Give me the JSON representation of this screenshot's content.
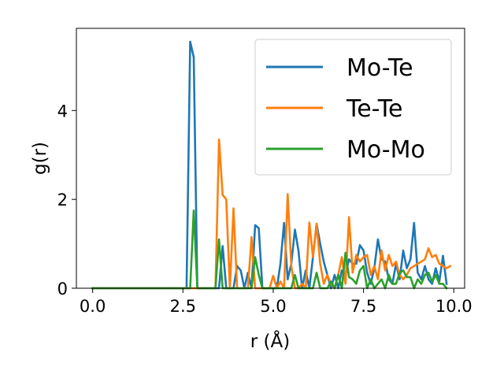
{
  "chart_data": {
    "type": "line",
    "xlabel": "r (Å)",
    "ylabel": "g(r)",
    "xlim": [
      -0.45,
      10.3
    ],
    "ylim": [
      0,
      5.85
    ],
    "xticks": [
      0.0,
      2.5,
      5.0,
      7.5,
      10.0
    ],
    "xtick_labels": [
      "0.0",
      "2.5",
      "5.0",
      "7.5",
      "10.0"
    ],
    "yticks": [
      0,
      2,
      4
    ],
    "ytick_labels": [
      "0",
      "2",
      "4"
    ],
    "grid": false,
    "legend_position": "top-right",
    "series": [
      {
        "name": "Mo-Te",
        "color": "#1f77b4",
        "points": [
          [
            0,
            0
          ],
          [
            2.6,
            0
          ],
          [
            2.7,
            5.55
          ],
          [
            2.8,
            5.2
          ],
          [
            2.9,
            0
          ],
          [
            3.5,
            0
          ],
          [
            3.6,
            0.95
          ],
          [
            3.7,
            0
          ],
          [
            3.9,
            0
          ],
          [
            4.0,
            0.5
          ],
          [
            4.1,
            0.4
          ],
          [
            4.2,
            0
          ],
          [
            4.3,
            0.35
          ],
          [
            4.4,
            0
          ],
          [
            4.5,
            1.42
          ],
          [
            4.6,
            1.35
          ],
          [
            4.7,
            0
          ],
          [
            5.1,
            0
          ],
          [
            5.2,
            0.55
          ],
          [
            5.3,
            1.47
          ],
          [
            5.4,
            0.2
          ],
          [
            5.5,
            0.55
          ],
          [
            5.6,
            1.32
          ],
          [
            5.7,
            0.85
          ],
          [
            5.8,
            0
          ],
          [
            5.9,
            0.4
          ],
          [
            6.0,
            0
          ],
          [
            6.1,
            0.7
          ],
          [
            6.2,
            1.45
          ],
          [
            6.3,
            1.0
          ],
          [
            6.4,
            0.6
          ],
          [
            6.5,
            0.3
          ],
          [
            6.6,
            0
          ],
          [
            6.7,
            0.3
          ],
          [
            6.8,
            0
          ],
          [
            6.9,
            0.4
          ],
          [
            7.0,
            0.3
          ],
          [
            7.1,
            0.65
          ],
          [
            7.2,
            0.55
          ],
          [
            7.3,
            0.55
          ],
          [
            7.4,
            0.97
          ],
          [
            7.5,
            0.85
          ],
          [
            7.6,
            0.35
          ],
          [
            7.7,
            0.1
          ],
          [
            7.8,
            0.45
          ],
          [
            7.9,
            1.1
          ],
          [
            8.0,
            0.65
          ],
          [
            8.1,
            0.6
          ],
          [
            8.2,
            0.2
          ],
          [
            8.3,
            0.1
          ],
          [
            8.4,
            0.55
          ],
          [
            8.5,
            0.2
          ],
          [
            8.6,
            0.85
          ],
          [
            8.7,
            0.45
          ],
          [
            8.8,
            0.65
          ],
          [
            8.9,
            1.47
          ],
          [
            9.0,
            0.35
          ],
          [
            9.1,
            0.2
          ],
          [
            9.2,
            0.5
          ],
          [
            9.3,
            0.2
          ],
          [
            9.4,
            0.1
          ],
          [
            9.5,
            0.45
          ],
          [
            9.6,
            0.15
          ],
          [
            9.7,
            0.73
          ],
          [
            9.8,
            0.1
          ]
        ]
      },
      {
        "name": "Te-Te",
        "color": "#ff7f0e",
        "points": [
          [
            0,
            0
          ],
          [
            3.4,
            0
          ],
          [
            3.5,
            3.35
          ],
          [
            3.6,
            2.1
          ],
          [
            3.7,
            2.0
          ],
          [
            3.8,
            0
          ],
          [
            3.9,
            1.8
          ],
          [
            4.0,
            0
          ],
          [
            4.3,
            0
          ],
          [
            4.4,
            1.15
          ],
          [
            4.5,
            0
          ],
          [
            4.9,
            0
          ],
          [
            5.0,
            0.28
          ],
          [
            5.1,
            0
          ],
          [
            5.2,
            0.15
          ],
          [
            5.3,
            0
          ],
          [
            5.4,
            2.12
          ],
          [
            5.5,
            0.5
          ],
          [
            5.6,
            0
          ],
          [
            5.7,
            0
          ],
          [
            5.8,
            0.1
          ],
          [
            5.9,
            0
          ],
          [
            6.0,
            1.48
          ],
          [
            6.1,
            0.7
          ],
          [
            6.2,
            1.45
          ],
          [
            6.3,
            0.55
          ],
          [
            6.4,
            0.1
          ],
          [
            6.5,
            0.3
          ],
          [
            6.6,
            0.1
          ],
          [
            6.7,
            0
          ],
          [
            6.8,
            0.3
          ],
          [
            6.9,
            0.7
          ],
          [
            7.0,
            0.1
          ],
          [
            7.1,
            1.6
          ],
          [
            7.2,
            0.35
          ],
          [
            7.3,
            0.75
          ],
          [
            7.4,
            0.6
          ],
          [
            7.5,
            0.7
          ],
          [
            7.6,
            0.75
          ],
          [
            7.7,
            0.3
          ],
          [
            7.8,
            0.5
          ],
          [
            7.9,
            0.2
          ],
          [
            8.0,
            0.85
          ],
          [
            8.1,
            0.4
          ],
          [
            8.2,
            0.75
          ],
          [
            8.3,
            0.5
          ],
          [
            8.4,
            0.6
          ],
          [
            8.5,
            0.3
          ],
          [
            8.6,
            0.2
          ],
          [
            8.7,
            0.3
          ],
          [
            8.8,
            0.45
          ],
          [
            8.9,
            0.5
          ],
          [
            9.0,
            0.55
          ],
          [
            9.1,
            0.6
          ],
          [
            9.2,
            0.65
          ],
          [
            9.3,
            0.9
          ],
          [
            9.4,
            0.7
          ],
          [
            9.5,
            0.75
          ],
          [
            9.6,
            0.55
          ],
          [
            9.7,
            0.5
          ],
          [
            9.8,
            0.45
          ],
          [
            9.9,
            0.5
          ]
        ]
      },
      {
        "name": "Mo-Mo",
        "color": "#2ca02c",
        "points": [
          [
            0,
            0
          ],
          [
            2.7,
            0
          ],
          [
            2.8,
            1.75
          ],
          [
            2.9,
            0
          ],
          [
            3.4,
            0
          ],
          [
            3.5,
            1.1
          ],
          [
            3.6,
            0
          ],
          [
            4.4,
            0
          ],
          [
            4.5,
            0.7
          ],
          [
            4.6,
            0.3
          ],
          [
            4.7,
            0
          ],
          [
            5.5,
            0
          ],
          [
            5.6,
            0.3
          ],
          [
            5.7,
            0
          ],
          [
            6.1,
            0
          ],
          [
            6.2,
            0.35
          ],
          [
            6.3,
            0
          ],
          [
            6.5,
            0
          ],
          [
            6.6,
            0.15
          ],
          [
            6.7,
            0
          ],
          [
            6.8,
            0.3
          ],
          [
            6.9,
            0
          ],
          [
            7.0,
            0.8
          ],
          [
            7.1,
            0.25
          ],
          [
            7.2,
            0.2
          ],
          [
            7.3,
            0.1
          ],
          [
            7.4,
            0.4
          ],
          [
            7.5,
            0.5
          ],
          [
            7.6,
            0
          ],
          [
            7.7,
            0.2
          ],
          [
            7.8,
            0
          ],
          [
            7.9,
            0.1
          ],
          [
            8.0,
            0.2
          ],
          [
            8.1,
            0
          ],
          [
            8.2,
            0.3
          ],
          [
            8.3,
            0.1
          ],
          [
            8.4,
            0.1
          ],
          [
            8.5,
            0.35
          ],
          [
            8.6,
            0.4
          ],
          [
            8.7,
            0.25
          ],
          [
            8.8,
            0.25
          ],
          [
            8.9,
            0
          ],
          [
            9.0,
            0.2
          ],
          [
            9.1,
            0.1
          ],
          [
            9.2,
            0.3
          ],
          [
            9.3,
            0.35
          ],
          [
            9.4,
            0.15
          ],
          [
            9.5,
            0.3
          ],
          [
            9.6,
            0.1
          ],
          [
            9.7,
            0.1
          ],
          [
            9.8,
            0
          ]
        ]
      }
    ]
  }
}
